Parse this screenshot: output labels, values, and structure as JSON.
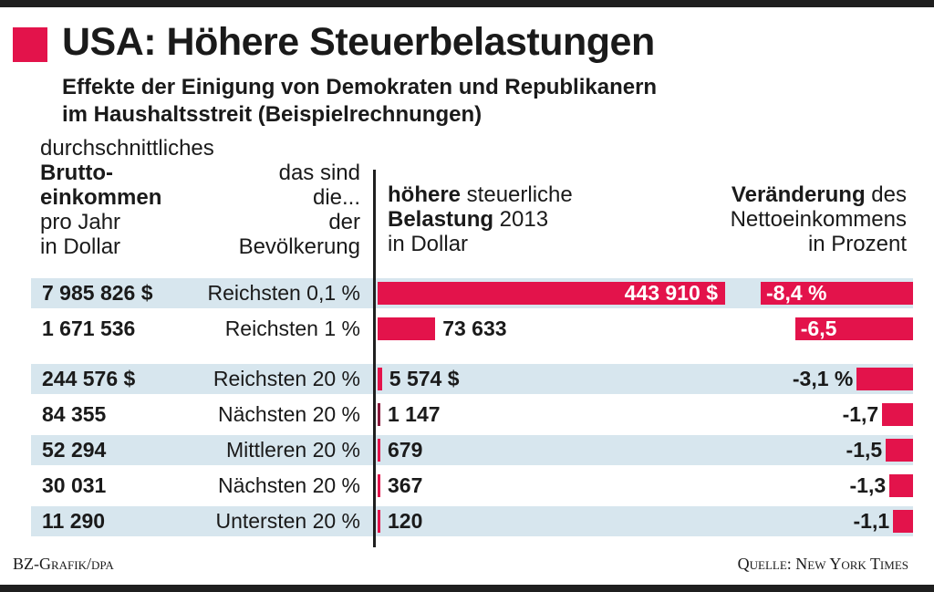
{
  "title": "USA: Höhere Steuerbelastungen",
  "subtitle_line1": "Effekte der Einigung von Demokraten und Republikanern",
  "subtitle_line2": "im Haushaltsstreit (Beispielrechnungen)",
  "columns": {
    "income": {
      "l1": "durchschnittliches",
      "l2": "Brutto-",
      "l3": "einkommen",
      "l4": "pro Jahr",
      "l5": "in Dollar"
    },
    "group": {
      "l1": "das sind",
      "l2": "die...",
      "l3": "der",
      "l4": "Bevölkerung"
    },
    "tax": {
      "l1_bold": "höhere",
      "l1_rest": " steuerliche",
      "l2_bold": "Belastung",
      "l2_rest": " 2013",
      "l3": "in Dollar"
    },
    "change": {
      "l1_bold": "Veränderung",
      "l1_rest": " des",
      "l2": "Nettoeinkommens",
      "l3": "in Prozent"
    }
  },
  "colors": {
    "accent": "#e3134b",
    "band": "#d7e6ee",
    "text": "#1a1a1a",
    "bar_dark": "#1f1f1f"
  },
  "chart_data": {
    "type": "bar",
    "title": "USA: Höhere Steuerbelastungen",
    "categories": [
      "Reichsten 0,1 %",
      "Reichsten 1 %",
      "Reichsten 20 %",
      "Nächsten 20 %",
      "Mittleren 20 %",
      "Nächsten 20 %",
      "Untersten 20 %"
    ],
    "income_values": [
      7985826,
      1671536,
      244576,
      84355,
      52294,
      30031,
      11290
    ],
    "income_labels": [
      "7 985 826 $",
      "1 671 536",
      "244 576 $",
      "84 355",
      "52 294",
      "30 031",
      "11 290"
    ],
    "series": [
      {
        "values": [
          443910,
          73633,
          5574,
          1147,
          679,
          367,
          120
        ],
        "labels": [
          "443 910 $",
          "73 633",
          "5 574 $",
          "1 147",
          "679",
          "367",
          "120"
        ]
      },
      {
        "values": [
          -8.4,
          -6.5,
          -3.1,
          -1.7,
          -1.5,
          -1.3,
          -1.1
        ],
        "labels": [
          "-8,4 %",
          "-6,5",
          "-3,1 %",
          "-1,7",
          "-1,5",
          "-1,3",
          "-1,1"
        ]
      }
    ],
    "shaded_rows": [
      0,
      2,
      4,
      6
    ]
  },
  "footer": {
    "left": "BZ-Grafik/dpa",
    "right": "Quelle: New York Times"
  }
}
